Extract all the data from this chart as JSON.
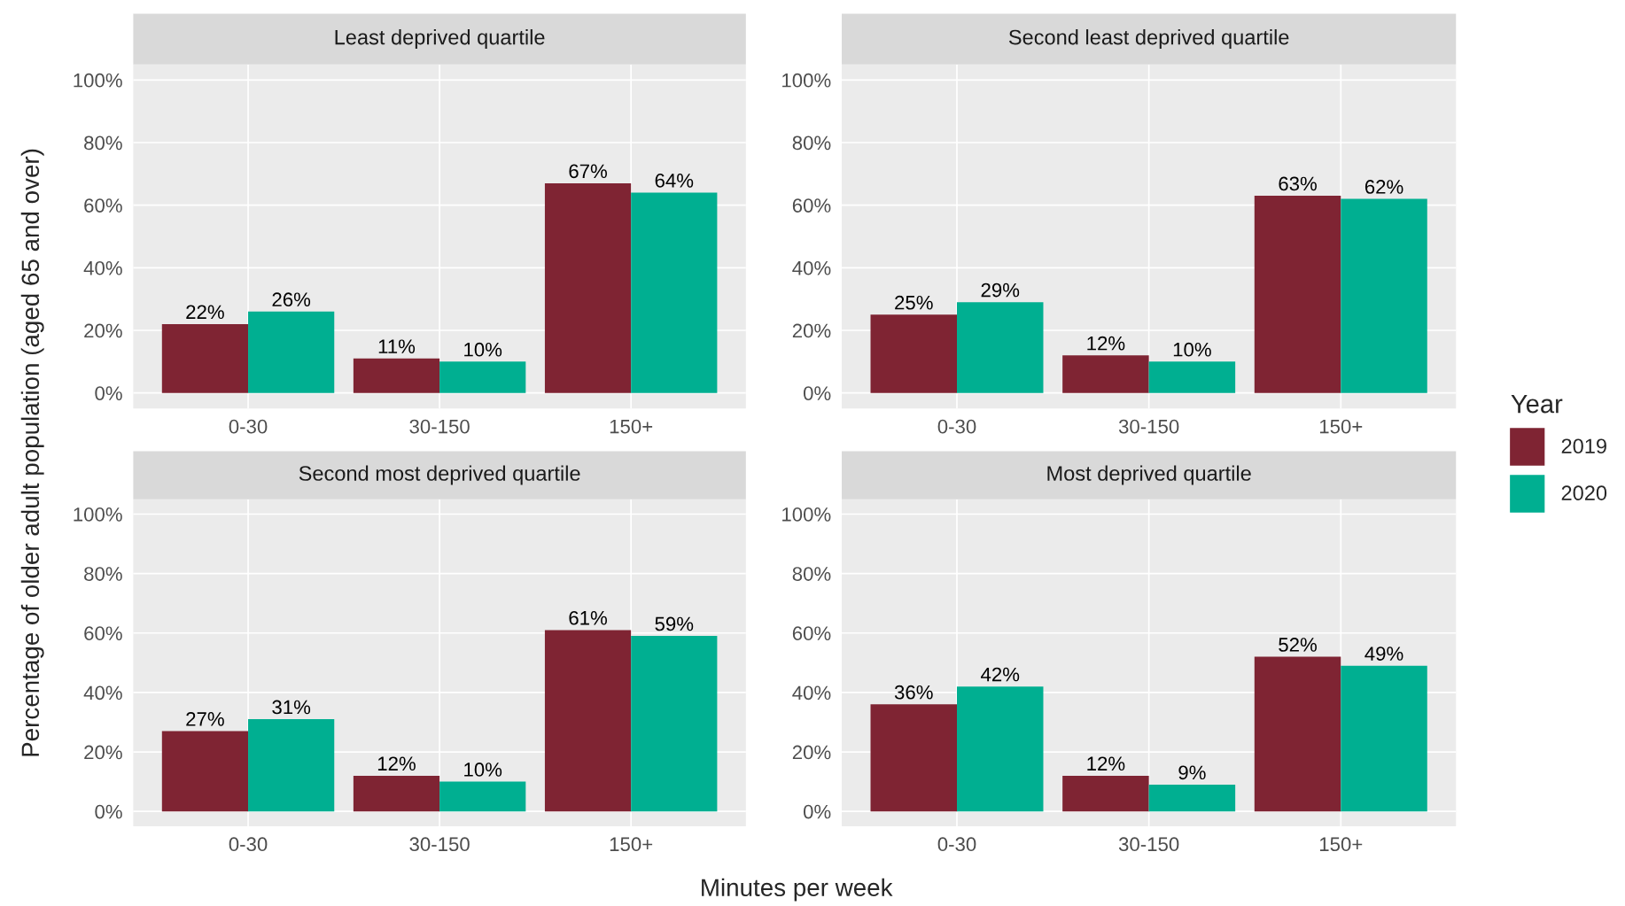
{
  "chart_data": [
    {
      "type": "bar",
      "title": "Least deprived quartile",
      "legend_title": "Year",
      "legend": "right",
      "ylabel": "Percentage of older adult population (aged 65 and over)",
      "categories": [
        "0-30",
        "30-150",
        "150+"
      ],
      "ylim": [
        -5,
        105
      ],
      "yticks": [
        {
          "value": 0,
          "label": "0%"
        },
        {
          "value": 20,
          "label": "20%"
        },
        {
          "value": 40,
          "label": "40%"
        },
        {
          "value": 60,
          "label": "60%"
        },
        {
          "value": 80,
          "label": "80%"
        },
        {
          "value": 100,
          "label": "100%"
        }
      ],
      "grid": true,
      "series": [
        {
          "name": "2019",
          "color": "#7f2433",
          "values": [
            22,
            11,
            67
          ],
          "value_labels": [
            "22%",
            "11%",
            "67%"
          ]
        },
        {
          "name": "2020",
          "color": "#00af91",
          "values": [
            26,
            10,
            64
          ],
          "value_labels": [
            "26%",
            "10%",
            "64%"
          ]
        }
      ]
    },
    {
      "type": "bar",
      "title": "Second least deprived quartile",
      "categories": [
        "0-30",
        "30-150",
        "150+"
      ],
      "ylim": [
        -5,
        105
      ],
      "yticks": [
        {
          "value": 0,
          "label": "0%"
        },
        {
          "value": 20,
          "label": "20%"
        },
        {
          "value": 40,
          "label": "40%"
        },
        {
          "value": 60,
          "label": "60%"
        },
        {
          "value": 80,
          "label": "80%"
        },
        {
          "value": 100,
          "label": "100%"
        }
      ],
      "grid": true,
      "series": [
        {
          "name": "2019",
          "color": "#7f2433",
          "values": [
            25,
            12,
            63
          ],
          "value_labels": [
            "25%",
            "12%",
            "63%"
          ]
        },
        {
          "name": "2020",
          "color": "#00af91",
          "values": [
            29,
            10,
            62
          ],
          "value_labels": [
            "29%",
            "10%",
            "62%"
          ]
        }
      ]
    },
    {
      "type": "bar",
      "title": "Second most deprived quartile",
      "xlabel": "Minutes per week",
      "categories": [
        "0-30",
        "30-150",
        "150+"
      ],
      "ylim": [
        -5,
        105
      ],
      "yticks": [
        {
          "value": 0,
          "label": "0%"
        },
        {
          "value": 20,
          "label": "20%"
        },
        {
          "value": 40,
          "label": "40%"
        },
        {
          "value": 60,
          "label": "60%"
        },
        {
          "value": 80,
          "label": "80%"
        },
        {
          "value": 100,
          "label": "100%"
        }
      ],
      "grid": true,
      "series": [
        {
          "name": "2019",
          "color": "#7f2433",
          "values": [
            27,
            12,
            61
          ],
          "value_labels": [
            "27%",
            "12%",
            "61%"
          ]
        },
        {
          "name": "2020",
          "color": "#00af91",
          "values": [
            31,
            10,
            59
          ],
          "value_labels": [
            "31%",
            "10%",
            "59%"
          ]
        }
      ]
    },
    {
      "type": "bar",
      "title": "Most deprived quartile",
      "categories": [
        "0-30",
        "30-150",
        "150+"
      ],
      "ylim": [
        -5,
        105
      ],
      "yticks": [
        {
          "value": 0,
          "label": "0%"
        },
        {
          "value": 20,
          "label": "20%"
        },
        {
          "value": 40,
          "label": "40%"
        },
        {
          "value": 60,
          "label": "60%"
        },
        {
          "value": 80,
          "label": "80%"
        },
        {
          "value": 100,
          "label": "100%"
        }
      ],
      "grid": true,
      "series": [
        {
          "name": "2019",
          "color": "#7f2433",
          "values": [
            36,
            12,
            52
          ],
          "value_labels": [
            "36%",
            "12%",
            "52%"
          ]
        },
        {
          "name": "2020",
          "color": "#00af91",
          "values": [
            42,
            9,
            49
          ],
          "value_labels": [
            "42%",
            "9%",
            "49%"
          ]
        }
      ]
    }
  ]
}
